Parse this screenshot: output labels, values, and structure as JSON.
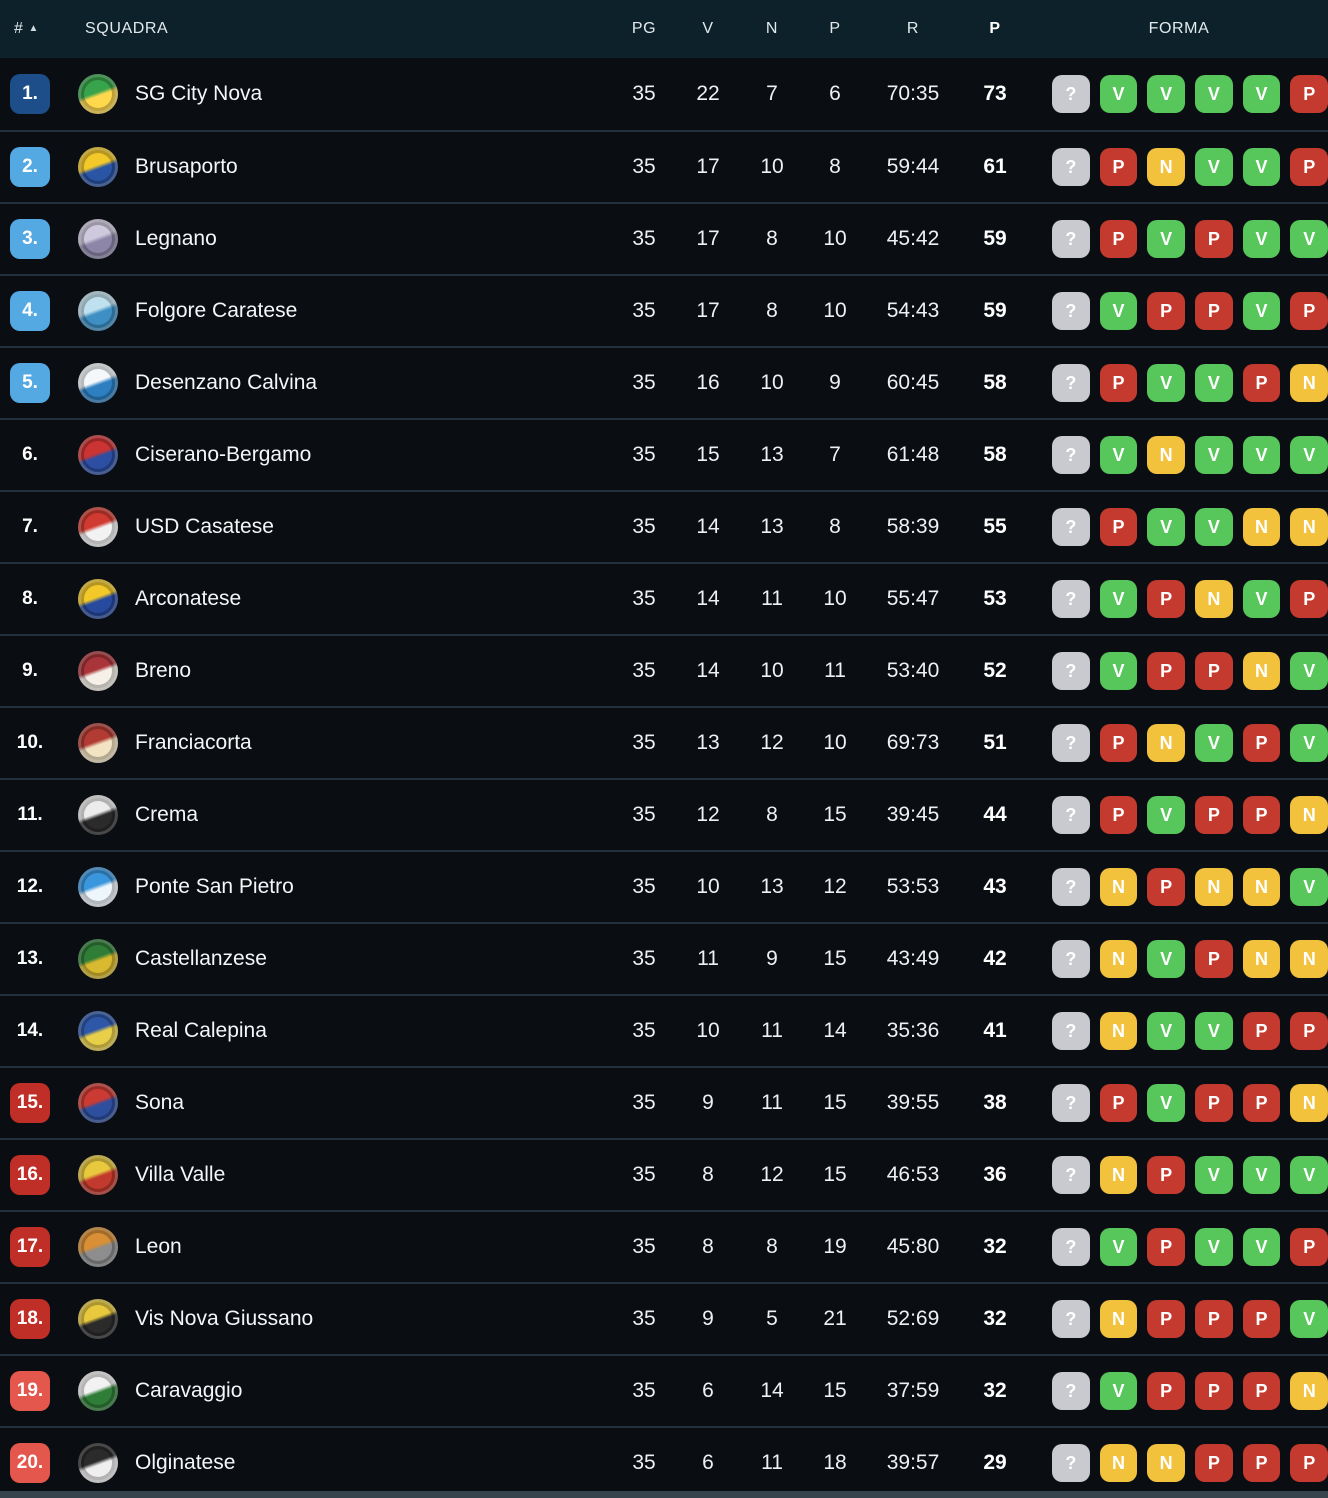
{
  "colors": {
    "header_bg": "#0d212a",
    "row_bg": "#0a0d12",
    "row_separator": "#232f3a",
    "pos_champion": "#1d4e89",
    "pos_playoff": "#54a9e3",
    "pos_playout": "#bf2f27",
    "pos_relegation": "#e4574d",
    "form_win": "#57c65b",
    "form_draw": "#f2c23d",
    "form_loss": "#c43a2e",
    "form_unknown": "#c9cad0"
  },
  "header": {
    "rank": "#",
    "sort_icon": "▲",
    "squadra": "SQUADRA",
    "pg": "PG",
    "v": "V",
    "n": "N",
    "p": "P",
    "r": "R",
    "pts": "P",
    "forma": "FORMA"
  },
  "form_legend": {
    "win": "V",
    "draw": "N",
    "loss": "P",
    "unknown": "?"
  },
  "rows": [
    {
      "pos": "1.",
      "pos_type": "champion",
      "team": "SG City Nova",
      "logo": [
        "#37a34a",
        "#ffd84d"
      ],
      "pg": "35",
      "v": "22",
      "n": "7",
      "p": "6",
      "r": "70:35",
      "pts": "73",
      "form": [
        "?",
        "V",
        "V",
        "V",
        "V",
        "P"
      ]
    },
    {
      "pos": "2.",
      "pos_type": "playoff",
      "team": "Brusaporto",
      "logo": [
        "#f2c928",
        "#2a55a5"
      ],
      "pg": "35",
      "v": "17",
      "n": "10",
      "p": "8",
      "r": "59:44",
      "pts": "61",
      "form": [
        "?",
        "P",
        "N",
        "V",
        "V",
        "P"
      ]
    },
    {
      "pos": "3.",
      "pos_type": "playoff",
      "team": "Legnano",
      "logo": [
        "#cfc9de",
        "#8e86a8"
      ],
      "pg": "35",
      "v": "17",
      "n": "8",
      "p": "10",
      "r": "45:42",
      "pts": "59",
      "form": [
        "?",
        "P",
        "V",
        "P",
        "V",
        "V"
      ]
    },
    {
      "pos": "4.",
      "pos_type": "playoff",
      "team": "Folgore Caratese",
      "logo": [
        "#bfe0ee",
        "#3d8fc4"
      ],
      "pg": "35",
      "v": "17",
      "n": "8",
      "p": "10",
      "r": "54:43",
      "pts": "59",
      "form": [
        "?",
        "V",
        "P",
        "P",
        "V",
        "P"
      ]
    },
    {
      "pos": "5.",
      "pos_type": "playoff",
      "team": "Desenzano Calvina",
      "logo": [
        "#f5f8fa",
        "#2d7fc1"
      ],
      "pg": "35",
      "v": "16",
      "n": "10",
      "p": "9",
      "r": "60:45",
      "pts": "58",
      "form": [
        "?",
        "P",
        "V",
        "V",
        "P",
        "N"
      ]
    },
    {
      "pos": "6.",
      "pos_type": "plain",
      "team": "Ciserano-Bergamo",
      "logo": [
        "#cc3333",
        "#2c4fa3"
      ],
      "pg": "35",
      "v": "15",
      "n": "13",
      "p": "7",
      "r": "61:48",
      "pts": "58",
      "form": [
        "?",
        "V",
        "N",
        "V",
        "V",
        "V"
      ]
    },
    {
      "pos": "7.",
      "pos_type": "plain",
      "team": "USD Casatese",
      "logo": [
        "#d03a30",
        "#f2f2f2"
      ],
      "pg": "35",
      "v": "14",
      "n": "13",
      "p": "8",
      "r": "58:39",
      "pts": "55",
      "form": [
        "?",
        "P",
        "V",
        "V",
        "N",
        "N"
      ]
    },
    {
      "pos": "8.",
      "pos_type": "plain",
      "team": "Arconatese",
      "logo": [
        "#f2c928",
        "#274a9e"
      ],
      "pg": "35",
      "v": "14",
      "n": "11",
      "p": "10",
      "r": "55:47",
      "pts": "53",
      "form": [
        "?",
        "V",
        "P",
        "N",
        "V",
        "P"
      ]
    },
    {
      "pos": "9.",
      "pos_type": "plain",
      "team": "Breno",
      "logo": [
        "#a93439",
        "#f5f0e8"
      ],
      "pg": "35",
      "v": "14",
      "n": "10",
      "p": "11",
      "r": "53:40",
      "pts": "52",
      "form": [
        "?",
        "V",
        "P",
        "P",
        "N",
        "V"
      ]
    },
    {
      "pos": "10.",
      "pos_type": "plain",
      "team": "Franciacorta",
      "logo": [
        "#b23b33",
        "#f2e3c2"
      ],
      "pg": "35",
      "v": "13",
      "n": "12",
      "p": "10",
      "r": "69:73",
      "pts": "51",
      "form": [
        "?",
        "P",
        "N",
        "V",
        "P",
        "V"
      ]
    },
    {
      "pos": "11.",
      "pos_type": "plain",
      "team": "Crema",
      "logo": [
        "#ececec",
        "#2b2b2b"
      ],
      "pg": "35",
      "v": "12",
      "n": "8",
      "p": "15",
      "r": "39:45",
      "pts": "44",
      "form": [
        "?",
        "P",
        "V",
        "P",
        "P",
        "N"
      ]
    },
    {
      "pos": "12.",
      "pos_type": "plain",
      "team": "Ponte San Pietro",
      "logo": [
        "#3b97dd",
        "#eef5fb"
      ],
      "pg": "35",
      "v": "10",
      "n": "13",
      "p": "12",
      "r": "53:53",
      "pts": "43",
      "form": [
        "?",
        "N",
        "P",
        "N",
        "N",
        "V"
      ]
    },
    {
      "pos": "13.",
      "pos_type": "plain",
      "team": "Castellanzese",
      "logo": [
        "#2f7d37",
        "#d8b92f"
      ],
      "pg": "35",
      "v": "11",
      "n": "9",
      "p": "15",
      "r": "43:49",
      "pts": "42",
      "form": [
        "?",
        "N",
        "V",
        "P",
        "N",
        "N"
      ]
    },
    {
      "pos": "14.",
      "pos_type": "plain",
      "team": "Real Calepina",
      "logo": [
        "#2e57a8",
        "#e8cf4a"
      ],
      "pg": "35",
      "v": "10",
      "n": "11",
      "p": "14",
      "r": "35:36",
      "pts": "41",
      "form": [
        "?",
        "N",
        "V",
        "V",
        "P",
        "P"
      ]
    },
    {
      "pos": "15.",
      "pos_type": "playout",
      "team": "Sona",
      "logo": [
        "#cc3b33",
        "#2e4f9e"
      ],
      "pg": "35",
      "v": "9",
      "n": "11",
      "p": "15",
      "r": "39:55",
      "pts": "38",
      "form": [
        "?",
        "P",
        "V",
        "P",
        "P",
        "N"
      ]
    },
    {
      "pos": "16.",
      "pos_type": "playout",
      "team": "Villa Valle",
      "logo": [
        "#e8c93e",
        "#c23a2e"
      ],
      "pg": "35",
      "v": "8",
      "n": "12",
      "p": "15",
      "r": "46:53",
      "pts": "36",
      "form": [
        "?",
        "N",
        "P",
        "V",
        "V",
        "V"
      ]
    },
    {
      "pos": "17.",
      "pos_type": "playout",
      "team": "Leon",
      "logo": [
        "#d98f35",
        "#8d8d8d"
      ],
      "pg": "35",
      "v": "8",
      "n": "8",
      "p": "19",
      "r": "45:80",
      "pts": "32",
      "form": [
        "?",
        "V",
        "P",
        "V",
        "V",
        "P"
      ]
    },
    {
      "pos": "18.",
      "pos_type": "playout",
      "team": "Vis Nova Giussano",
      "logo": [
        "#e8c93e",
        "#2b2b2b"
      ],
      "pg": "35",
      "v": "9",
      "n": "5",
      "p": "21",
      "r": "52:69",
      "pts": "32",
      "form": [
        "?",
        "N",
        "P",
        "P",
        "P",
        "V"
      ]
    },
    {
      "pos": "19.",
      "pos_type": "relegation",
      "team": "Caravaggio",
      "logo": [
        "#f2f2f2",
        "#2f7d37"
      ],
      "pg": "35",
      "v": "6",
      "n": "14",
      "p": "15",
      "r": "37:59",
      "pts": "32",
      "form": [
        "?",
        "V",
        "P",
        "P",
        "P",
        "N"
      ]
    },
    {
      "pos": "20.",
      "pos_type": "relegation",
      "team": "Olginatese",
      "logo": [
        "#2b2b2b",
        "#efefef"
      ],
      "pg": "35",
      "v": "6",
      "n": "11",
      "p": "18",
      "r": "39:57",
      "pts": "29",
      "form": [
        "?",
        "N",
        "N",
        "P",
        "P",
        "P"
      ]
    }
  ]
}
